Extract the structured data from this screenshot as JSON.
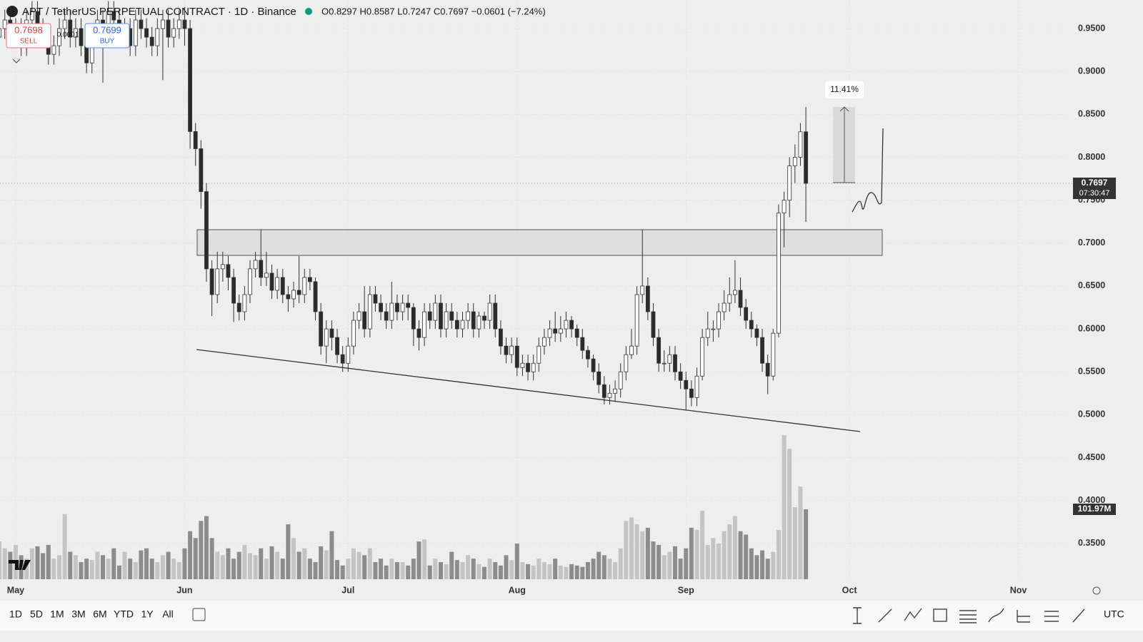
{
  "chart_data": {
    "type": "candlestick",
    "title": "APT / TetherUS PERPETUAL CONTRACT · 1D · Binance",
    "ohlc_text": "O0.8297 H0.8587 L0.7247 C0.7697 −0.0601 (−7.24%)",
    "sell_price": "0.7698",
    "sell_label": "SELL",
    "spread": "0.0001",
    "buy_price": "0.7699",
    "buy_label": "BUY",
    "last_price_label": "0.7697",
    "countdown": "07:30:47",
    "volume_label": "101.97M",
    "measure_label": "11.41%",
    "timeframes": [
      "1D",
      "5D",
      "1M",
      "3M",
      "6M",
      "YTD",
      "1Y",
      "All"
    ],
    "timezone": "UTC",
    "xlim": [
      0.12,
      196.1
    ],
    "xticks": [
      {
        "value": 3,
        "label": "May"
      },
      {
        "value": 34,
        "label": "Jun"
      },
      {
        "value": 64,
        "label": "Jul"
      },
      {
        "value": 95,
        "label": "Aug"
      },
      {
        "value": 126,
        "label": "Sep"
      },
      {
        "value": 156,
        "label": "Oct"
      },
      {
        "value": 187,
        "label": "Nov"
      }
    ],
    "ylim": [
      0.3058,
      0.9833
    ],
    "yticks": [
      {
        "value": 0.35,
        "label": "0.3500"
      },
      {
        "value": 0.4,
        "label": "0.4000"
      },
      {
        "value": 0.45,
        "label": "0.4500"
      },
      {
        "value": 0.5,
        "label": "0.5000"
      },
      {
        "value": 0.55,
        "label": "0.5500"
      },
      {
        "value": 0.6,
        "label": "0.6000"
      },
      {
        "value": 0.65,
        "label": "0.6500"
      },
      {
        "value": 0.7,
        "label": "0.7000"
      },
      {
        "value": 0.75,
        "label": "0.7500"
      },
      {
        "value": 0.8,
        "label": "0.8000"
      },
      {
        "value": 0.85,
        "label": "0.8500"
      },
      {
        "value": 0.9,
        "label": "0.9000"
      },
      {
        "value": 0.95,
        "label": "0.9500"
      }
    ],
    "grid": true,
    "up_color": "#ffffff",
    "down_color": "#2b2b2b",
    "wick_color": "#333333",
    "volume_up_color": "#c4c4c4",
    "volume_down_color": "#8c8c8c",
    "open": [
      0.94,
      0.95,
      0.96,
      0.94,
      0.95,
      0.93,
      0.96,
      0.97,
      0.95,
      0.94,
      0.92,
      0.93,
      0.95,
      0.96,
      0.94,
      0.95,
      0.93,
      0.91,
      0.94,
      0.96,
      0.95,
      0.97,
      0.96,
      0.94,
      0.95,
      0.93,
      0.96,
      0.95,
      0.94,
      0.93,
      0.95,
      0.96,
      0.94,
      0.95,
      0.96,
      0.95,
      0.83,
      0.81,
      0.76,
      0.67,
      0.64,
      0.67,
      0.675,
      0.66,
      0.63,
      0.62,
      0.64,
      0.67,
      0.68,
      0.66,
      0.665,
      0.645,
      0.66,
      0.64,
      0.635,
      0.645,
      0.64,
      0.66,
      0.655,
      0.62,
      0.58,
      0.6,
      0.59,
      0.57,
      0.56,
      0.58,
      0.61,
      0.62,
      0.6,
      0.64,
      0.63,
      0.62,
      0.61,
      0.63,
      0.62,
      0.63,
      0.625,
      0.6,
      0.59,
      0.62,
      0.61,
      0.63,
      0.6,
      0.62,
      0.61,
      0.6,
      0.61,
      0.62,
      0.6,
      0.615,
      0.61,
      0.63,
      0.6,
      0.58,
      0.57,
      0.58,
      0.555,
      0.56,
      0.55,
      0.56,
      0.58,
      0.59,
      0.6,
      0.595,
      0.6,
      0.61,
      0.6,
      0.59,
      0.575,
      0.565,
      0.55,
      0.535,
      0.52,
      0.525,
      0.53,
      0.55,
      0.57,
      0.58,
      0.64,
      0.65,
      0.62,
      0.59,
      0.56,
      0.56,
      0.57,
      0.55,
      0.54,
      0.53,
      0.52,
      0.545,
      0.59,
      0.6,
      0.6,
      0.62,
      0.63,
      0.64,
      0.645,
      0.625,
      0.61,
      0.6,
      0.59,
      0.56,
      0.545,
      0.595,
      0.735,
      0.75,
      0.79,
      0.8,
      0.8297
    ],
    "high": [
      0.962,
      0.972,
      0.972,
      0.962,
      0.962,
      0.972,
      0.982,
      0.982,
      0.962,
      0.952,
      0.942,
      0.962,
      0.972,
      0.972,
      0.962,
      0.962,
      0.942,
      0.952,
      0.972,
      0.972,
      0.982,
      0.982,
      0.972,
      0.962,
      0.962,
      0.972,
      0.972,
      0.962,
      0.952,
      0.962,
      0.972,
      0.972,
      0.962,
      0.972,
      0.975,
      0.96,
      0.84,
      0.82,
      0.77,
      0.68,
      0.69,
      0.69,
      0.685,
      0.67,
      0.64,
      0.65,
      0.68,
      0.69,
      0.716,
      0.69,
      0.675,
      0.67,
      0.67,
      0.65,
      0.655,
      0.685,
      0.67,
      0.67,
      0.66,
      0.63,
      0.61,
      0.61,
      0.6,
      0.58,
      0.59,
      0.62,
      0.63,
      0.65,
      0.65,
      0.65,
      0.64,
      0.63,
      0.655,
      0.64,
      0.64,
      0.64,
      0.63,
      0.61,
      0.63,
      0.63,
      0.64,
      0.64,
      0.63,
      0.63,
      0.62,
      0.62,
      0.63,
      0.63,
      0.62,
      0.62,
      0.64,
      0.64,
      0.61,
      0.59,
      0.59,
      0.59,
      0.57,
      0.57,
      0.57,
      0.59,
      0.6,
      0.61,
      0.62,
      0.615,
      0.62,
      0.615,
      0.605,
      0.6,
      0.58,
      0.57,
      0.56,
      0.545,
      0.535,
      0.54,
      0.56,
      0.58,
      0.6,
      0.65,
      0.716,
      0.66,
      0.63,
      0.6,
      0.575,
      0.58,
      0.58,
      0.56,
      0.55,
      0.54,
      0.555,
      0.6,
      0.62,
      0.61,
      0.63,
      0.645,
      0.66,
      0.68,
      0.66,
      0.635,
      0.62,
      0.605,
      0.6,
      0.57,
      0.6,
      0.745,
      0.76,
      0.8,
      0.815,
      0.84,
      0.8587
    ],
    "low": [
      0.928,
      0.938,
      0.928,
      0.928,
      0.918,
      0.918,
      0.948,
      0.938,
      0.928,
      0.908,
      0.908,
      0.918,
      0.938,
      0.928,
      0.928,
      0.918,
      0.898,
      0.898,
      0.928,
      0.887,
      0.938,
      0.948,
      0.928,
      0.928,
      0.918,
      0.918,
      0.938,
      0.928,
      0.918,
      0.918,
      0.89,
      0.928,
      0.928,
      0.938,
      0.93,
      0.81,
      0.79,
      0.74,
      0.655,
      0.615,
      0.63,
      0.655,
      0.645,
      0.608,
      0.61,
      0.61,
      0.63,
      0.66,
      0.65,
      0.65,
      0.635,
      0.635,
      0.63,
      0.62,
      0.625,
      0.63,
      0.63,
      0.645,
      0.61,
      0.57,
      0.56,
      0.575,
      0.56,
      0.55,
      0.55,
      0.57,
      0.6,
      0.59,
      0.59,
      0.62,
      0.61,
      0.6,
      0.6,
      0.61,
      0.61,
      0.61,
      0.58,
      0.575,
      0.58,
      0.6,
      0.6,
      0.59,
      0.59,
      0.6,
      0.59,
      0.59,
      0.6,
      0.59,
      0.59,
      0.6,
      0.6,
      0.59,
      0.57,
      0.56,
      0.56,
      0.545,
      0.545,
      0.54,
      0.54,
      0.55,
      0.57,
      0.58,
      0.585,
      0.585,
      0.59,
      0.59,
      0.58,
      0.565,
      0.555,
      0.54,
      0.525,
      0.512,
      0.512,
      0.515,
      0.52,
      0.54,
      0.565,
      0.57,
      0.63,
      0.61,
      0.58,
      0.55,
      0.55,
      0.55,
      0.54,
      0.53,
      0.505,
      0.51,
      0.51,
      0.54,
      0.58,
      0.585,
      0.59,
      0.61,
      0.62,
      0.63,
      0.615,
      0.6,
      0.59,
      0.58,
      0.55,
      0.524,
      0.54,
      0.59,
      0.695,
      0.73,
      0.77,
      0.79,
      0.7247
    ],
    "close": [
      0.95,
      0.96,
      0.94,
      0.95,
      0.93,
      0.96,
      0.97,
      0.95,
      0.94,
      0.92,
      0.93,
      0.95,
      0.96,
      0.94,
      0.95,
      0.93,
      0.91,
      0.94,
      0.96,
      0.95,
      0.97,
      0.96,
      0.94,
      0.95,
      0.93,
      0.96,
      0.95,
      0.94,
      0.93,
      0.95,
      0.96,
      0.94,
      0.95,
      0.96,
      0.95,
      0.83,
      0.81,
      0.76,
      0.67,
      0.64,
      0.67,
      0.675,
      0.66,
      0.63,
      0.62,
      0.64,
      0.67,
      0.68,
      0.66,
      0.665,
      0.645,
      0.66,
      0.64,
      0.635,
      0.645,
      0.64,
      0.66,
      0.655,
      0.62,
      0.58,
      0.6,
      0.59,
      0.57,
      0.56,
      0.58,
      0.61,
      0.62,
      0.6,
      0.64,
      0.63,
      0.62,
      0.61,
      0.63,
      0.62,
      0.63,
      0.625,
      0.6,
      0.59,
      0.62,
      0.61,
      0.63,
      0.6,
      0.62,
      0.61,
      0.6,
      0.61,
      0.62,
      0.6,
      0.615,
      0.61,
      0.63,
      0.6,
      0.58,
      0.57,
      0.58,
      0.555,
      0.56,
      0.55,
      0.56,
      0.58,
      0.59,
      0.6,
      0.595,
      0.6,
      0.61,
      0.6,
      0.59,
      0.575,
      0.565,
      0.55,
      0.535,
      0.52,
      0.525,
      0.53,
      0.55,
      0.57,
      0.58,
      0.64,
      0.65,
      0.62,
      0.59,
      0.56,
      0.56,
      0.57,
      0.55,
      0.54,
      0.53,
      0.52,
      0.545,
      0.59,
      0.6,
      0.6,
      0.62,
      0.63,
      0.64,
      0.645,
      0.625,
      0.61,
      0.6,
      0.59,
      0.56,
      0.545,
      0.595,
      0.735,
      0.75,
      0.79,
      0.8,
      0.8297,
      0.7697
    ],
    "volume": [
      55,
      45,
      40,
      50,
      35,
      30,
      45,
      48,
      38,
      50,
      30,
      35,
      95,
      40,
      35,
      25,
      30,
      28,
      40,
      35,
      30,
      45,
      20,
      40,
      30,
      25,
      42,
      45,
      30,
      25,
      35,
      40,
      30,
      25,
      45,
      70,
      60,
      85,
      92,
      60,
      40,
      35,
      45,
      30,
      40,
      50,
      38,
      35,
      45,
      30,
      48,
      40,
      30,
      80,
      60,
      40,
      45,
      30,
      25,
      48,
      42,
      70,
      28,
      20,
      30,
      45,
      40,
      35,
      45,
      25,
      30,
      20,
      30,
      25,
      25,
      20,
      30,
      55,
      58,
      20,
      30,
      25,
      22,
      40,
      28,
      25,
      35,
      30,
      22,
      18,
      30,
      25,
      20,
      35,
      28,
      52,
      25,
      22,
      20,
      30,
      25,
      22,
      30,
      20,
      18,
      22,
      20,
      18,
      25,
      30,
      40,
      35,
      30,
      25,
      45,
      85,
      90,
      80,
      70,
      75,
      55,
      50,
      35,
      40,
      48,
      30,
      45,
      75,
      72,
      100,
      50,
      60,
      52,
      70,
      80,
      92,
      70,
      65,
      45,
      35,
      42,
      30,
      40,
      72,
      210,
      190,
      105,
      135,
      101.97
    ]
  }
}
